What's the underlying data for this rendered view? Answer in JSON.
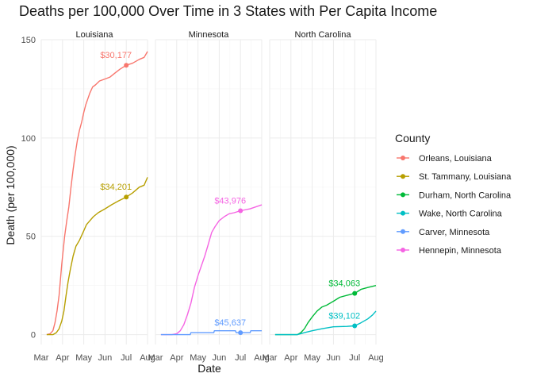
{
  "chart_data": {
    "type": "line",
    "title": "Deaths per 100,000 Over Time in 3 States with Per Capita Income",
    "xlabel": "Date",
    "ylabel": "Death (per 100,000)",
    "x_ticks": [
      "Mar",
      "Apr",
      "May",
      "Jun",
      "Jul",
      "Aug"
    ],
    "y_ticks": [
      0,
      50,
      100,
      150
    ],
    "ylim": [
      -5,
      150
    ],
    "xlim_months": [
      3,
      8
    ],
    "grid": true,
    "legend": {
      "title": "County",
      "position": "right"
    },
    "panels": [
      {
        "name": "Louisiana",
        "series": [
          {
            "name": "Orleans, Louisiana",
            "color": "#F8766D",
            "income_label": "$30,177",
            "marker": {
              "x": "Jul 1",
              "y": 137
            },
            "points": [
              [
                "Mar 9",
                0
              ],
              [
                "Mar 14",
                0.5
              ],
              [
                "Mar 18",
                2
              ],
              [
                "Mar 21",
                6
              ],
              [
                "Mar 24",
                12
              ],
              [
                "Mar 27",
                20
              ],
              [
                "Mar 31",
                36
              ],
              [
                "Apr 4",
                50
              ],
              [
                "Apr 7",
                58
              ],
              [
                "Apr 10",
                65
              ],
              [
                "Apr 13",
                75
              ],
              [
                "Apr 16",
                84
              ],
              [
                "Apr 19",
                92
              ],
              [
                "Apr 22",
                99
              ],
              [
                "Apr 25",
                104
              ],
              [
                "Apr 28",
                108
              ],
              [
                "May 1",
                113
              ],
              [
                "May 4",
                117
              ],
              [
                "May 7",
                120
              ],
              [
                "May 10",
                123
              ],
              [
                "May 14",
                126
              ],
              [
                "May 18",
                127
              ],
              [
                "May 24",
                129
              ],
              [
                "Jun 1",
                130
              ],
              [
                "Jun 8",
                131
              ],
              [
                "Jun 15",
                133
              ],
              [
                "Jun 22",
                135
              ],
              [
                "Jul 1",
                137
              ],
              [
                "Jul 10",
                138
              ],
              [
                "Jul 20",
                140
              ],
              [
                "Jul 27",
                141
              ],
              [
                "Aug 1",
                144
              ]
            ]
          },
          {
            "name": "St. Tammany, Louisiana",
            "color": "#B79F00",
            "income_label": "$34,201",
            "marker": {
              "x": "Jul 1",
              "y": 70
            },
            "points": [
              [
                "Mar 9",
                0
              ],
              [
                "Mar 18",
                0
              ],
              [
                "Mar 23",
                1
              ],
              [
                "Mar 27",
                3
              ],
              [
                "Mar 31",
                7
              ],
              [
                "Apr 3",
                12
              ],
              [
                "Apr 6",
                20
              ],
              [
                "Apr 9",
                27
              ],
              [
                "Apr 12",
                33
              ],
              [
                "Apr 16",
                40
              ],
              [
                "Apr 20",
                45
              ],
              [
                "Apr 25",
                48
              ],
              [
                "Apr 30",
                52
              ],
              [
                "May 5",
                56
              ],
              [
                "May 10",
                58
              ],
              [
                "May 15",
                60
              ],
              [
                "May 22",
                62
              ],
              [
                "Jun 1",
                64
              ],
              [
                "Jun 10",
                66
              ],
              [
                "Jun 20",
                68
              ],
              [
                "Jul 1",
                70
              ],
              [
                "Jul 10",
                72
              ],
              [
                "Jul 20",
                75
              ],
              [
                "Jul 27",
                76
              ],
              [
                "Aug 1",
                80
              ]
            ]
          }
        ]
      },
      {
        "name": "Minnesota",
        "series": [
          {
            "name": "Hennepin, Minnesota",
            "color": "#F564E3",
            "income_label": "$43,976",
            "marker": {
              "x": "Jul 1",
              "y": 63
            },
            "points": [
              [
                "Mar 9",
                0
              ],
              [
                "Mar 25",
                0
              ],
              [
                "Apr 1",
                0.5
              ],
              [
                "Apr 6",
                2
              ],
              [
                "Apr 11",
                5
              ],
              [
                "Apr 16",
                10
              ],
              [
                "Apr 21",
                16
              ],
              [
                "Apr 26",
                24
              ],
              [
                "May 1",
                30
              ],
              [
                "May 6",
                35
              ],
              [
                "May 11",
                40
              ],
              [
                "May 16",
                46
              ],
              [
                "May 21",
                52
              ],
              [
                "May 26",
                55
              ],
              [
                "Jun 1",
                58
              ],
              [
                "Jun 8",
                60
              ],
              [
                "Jun 15",
                61.5
              ],
              [
                "Jun 22",
                62
              ],
              [
                "Jul 1",
                63
              ],
              [
                "Jul 15",
                64
              ],
              [
                "Aug 1",
                66
              ]
            ]
          },
          {
            "name": "Carver, Minnesota",
            "color": "#619CFF",
            "income_label": "$45,637",
            "marker": {
              "x": "Jul 1",
              "y": 1
            },
            "points": [
              [
                "Mar 9",
                0
              ],
              [
                "Apr 20",
                0
              ],
              [
                "Apr 21",
                1
              ],
              [
                "May 24",
                1
              ],
              [
                "May 25",
                2
              ],
              [
                "Jun 24",
                2
              ],
              [
                "Jun 25",
                1
              ],
              [
                "Jul 15",
                1
              ],
              [
                "Jul 16",
                2
              ],
              [
                "Aug 1",
                2
              ]
            ]
          }
        ]
      },
      {
        "name": "North Carolina",
        "series": [
          {
            "name": "Durham, North Carolina",
            "color": "#00BA38",
            "income_label": "$34,063",
            "marker": {
              "x": "Jul 1",
              "y": 21
            },
            "points": [
              [
                "Mar 9",
                0
              ],
              [
                "Apr 10",
                0
              ],
              [
                "Apr 15",
                1
              ],
              [
                "Apr 20",
                3
              ],
              [
                "Apr 25",
                6
              ],
              [
                "May 1",
                9
              ],
              [
                "May 8",
                12
              ],
              [
                "May 15",
                14
              ],
              [
                "May 22",
                15
              ],
              [
                "Jun 1",
                17
              ],
              [
                "Jun 10",
                19
              ],
              [
                "Jun 20",
                20
              ],
              [
                "Jul 1",
                21
              ],
              [
                "Jul 10",
                23
              ],
              [
                "Jul 20",
                24
              ],
              [
                "Aug 1",
                25
              ]
            ]
          },
          {
            "name": "Wake, North Carolina",
            "color": "#00BFC4",
            "income_label": "$39,102",
            "marker": {
              "x": "Jul 1",
              "y": 4.5
            },
            "points": [
              [
                "Mar 9",
                0
              ],
              [
                "Apr 10",
                0
              ],
              [
                "Apr 20",
                1
              ],
              [
                "May 1",
                2
              ],
              [
                "May 15",
                3
              ],
              [
                "Jun 1",
                4
              ],
              [
                "Jun 20",
                4.2
              ],
              [
                "Jul 1",
                4.5
              ],
              [
                "Jul 10",
                6
              ],
              [
                "Jul 20",
                8
              ],
              [
                "Jul 27",
                10
              ],
              [
                "Aug 1",
                12
              ]
            ]
          }
        ]
      }
    ],
    "legend_order": [
      "Orleans, Louisiana",
      "St. Tammany, Louisiana",
      "Durham, North Carolina",
      "Wake, North Carolina",
      "Carver, Minnesota",
      "Hennepin, Minnesota"
    ]
  }
}
